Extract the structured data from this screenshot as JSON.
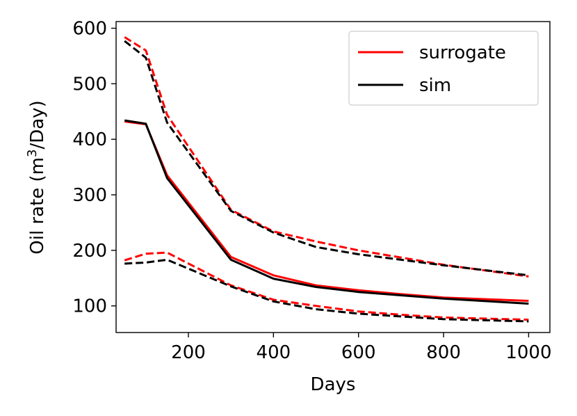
{
  "chart_data": {
    "type": "line",
    "xlabel": "Days",
    "ylabel_prefix": "Oil rate (m",
    "ylabel_sup": "3",
    "ylabel_suffix": "/Day)",
    "xlim": [
      30,
      1050
    ],
    "ylim": [
      52,
      612
    ],
    "xticks": [
      200,
      400,
      600,
      800,
      1000
    ],
    "xtick_labels": [
      "200",
      "400",
      "600",
      "800",
      "1000"
    ],
    "yticks": [
      100,
      200,
      300,
      400,
      500,
      600
    ],
    "ytick_labels": [
      "100",
      "200",
      "300",
      "400",
      "500",
      "600"
    ],
    "legend": {
      "position": "top-right",
      "entries": [
        {
          "label": "surrogate",
          "color": "#ff0000"
        },
        {
          "label": "sim",
          "color": "#000000"
        }
      ]
    },
    "x": [
      50,
      100,
      150,
      300,
      400,
      500,
      600,
      700,
      800,
      1000
    ],
    "series": [
      {
        "name": "surrogate",
        "role": "upper",
        "color": "#ff0000",
        "style": "dashed",
        "values": [
          584,
          560,
          444,
          273,
          234,
          216,
          200,
          187,
          174,
          153
        ]
      },
      {
        "name": "sim",
        "role": "upper",
        "color": "#000000",
        "style": "dashed",
        "values": [
          577,
          547,
          430,
          271,
          232,
          206,
          193,
          183,
          173,
          155
        ]
      },
      {
        "name": "surrogate",
        "role": "median",
        "color": "#ff0000",
        "style": "solid",
        "values": [
          432,
          427,
          335,
          188,
          155,
          137,
          128,
          121,
          115,
          109
        ]
      },
      {
        "name": "sim",
        "role": "median",
        "color": "#000000",
        "style": "solid",
        "values": [
          434,
          428,
          330,
          183,
          149,
          134,
          125,
          119,
          113,
          104
        ]
      },
      {
        "name": "surrogate",
        "role": "lower",
        "color": "#ff0000",
        "style": "dashed",
        "values": [
          182,
          194,
          196,
          137,
          111,
          100,
          90,
          84,
          79,
          75
        ]
      },
      {
        "name": "sim",
        "role": "lower",
        "color": "#000000",
        "style": "dashed",
        "values": [
          176,
          178,
          183,
          135,
          108,
          94,
          86,
          81,
          76,
          72
        ]
      }
    ]
  }
}
